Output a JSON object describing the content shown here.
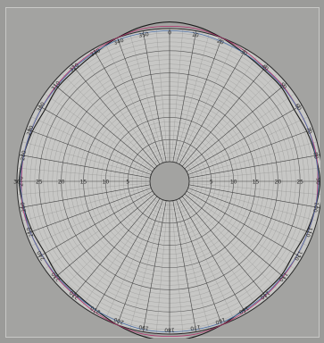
{
  "chart_data": {
    "type": "line",
    "projection": "polar",
    "title": "",
    "rings": [
      5,
      10,
      15,
      20,
      25,
      30
    ],
    "angular_labels": [
      "0",
      "10",
      "20",
      "30",
      "40",
      "50",
      "60",
      "70",
      "80",
      "90",
      "100",
      "110",
      "120",
      "130",
      "140",
      "150",
      "160",
      "170",
      "180",
      "190",
      "200",
      "210",
      "220",
      "230",
      "240",
      "250",
      "260",
      "270",
      "280",
      "290",
      "300",
      "310",
      "320",
      "330",
      "340",
      "350"
    ],
    "radial_labels": [
      "5",
      "10",
      "15",
      "20",
      "25",
      "30"
    ],
    "grid": true,
    "series": [
      {
        "color": "#1a1a1a",
        "angles_deg": [
          0,
          10,
          20,
          30,
          40,
          50,
          60,
          70,
          80,
          90,
          100,
          110,
          120,
          130,
          140,
          150,
          160,
          170,
          180,
          190,
          200,
          210,
          220,
          230,
          240,
          250,
          260,
          270,
          280,
          290,
          300,
          310,
          320,
          330,
          340,
          350
        ],
        "values": [
          31.5,
          31.0,
          30.0,
          29.0,
          28.5,
          28.5,
          28.0,
          28.5,
          29.0,
          29.5,
          29.0,
          28.5,
          28.0,
          28.5,
          28.5,
          29.0,
          30.0,
          31.0,
          31.5,
          31.0,
          30.0,
          29.0,
          28.5,
          28.5,
          28.0,
          28.5,
          29.0,
          29.5,
          29.0,
          28.5,
          28.0,
          28.5,
          28.5,
          29.0,
          30.0,
          31.0
        ]
      },
      {
        "color": "#b0306a",
        "angles_deg": [
          0,
          10,
          20,
          30,
          40,
          50,
          60,
          70,
          80,
          90,
          100,
          110,
          120,
          130,
          140,
          150,
          160,
          170,
          180,
          190,
          200,
          210,
          220,
          230,
          240,
          250,
          260,
          270,
          280,
          290,
          300,
          310,
          320,
          330,
          340,
          350
        ],
        "values": [
          30.5,
          30.5,
          30.0,
          29.5,
          29.0,
          29.0,
          28.8,
          29.0,
          29.2,
          29.0,
          29.0,
          28.8,
          28.8,
          29.0,
          29.2,
          29.5,
          30.0,
          30.5,
          30.5,
          30.5,
          30.0,
          29.5,
          29.0,
          29.0,
          28.8,
          29.0,
          29.2,
          29.0,
          29.0,
          28.8,
          28.8,
          29.0,
          29.2,
          29.5,
          30.0,
          30.5
        ]
      },
      {
        "color": "#4a6fa8",
        "angles_deg": [
          0,
          10,
          20,
          30,
          40,
          50,
          60,
          70,
          80,
          90,
          100,
          110,
          120,
          130,
          140,
          150,
          160,
          170,
          180,
          190,
          200,
          210,
          220,
          230,
          240,
          250,
          260,
          270,
          280,
          290,
          300,
          310,
          320,
          330,
          340,
          350
        ],
        "values": [
          29.5,
          29.5,
          29.2,
          29.0,
          28.8,
          28.8,
          28.8,
          29.0,
          29.0,
          29.2,
          29.0,
          28.8,
          28.8,
          28.8,
          29.0,
          29.2,
          29.5,
          29.5,
          29.5,
          29.5,
          29.2,
          29.0,
          28.8,
          28.8,
          28.8,
          29.0,
          29.0,
          29.2,
          29.0,
          28.8,
          28.8,
          28.8,
          29.0,
          29.2,
          29.5,
          29.5
        ]
      }
    ]
  }
}
